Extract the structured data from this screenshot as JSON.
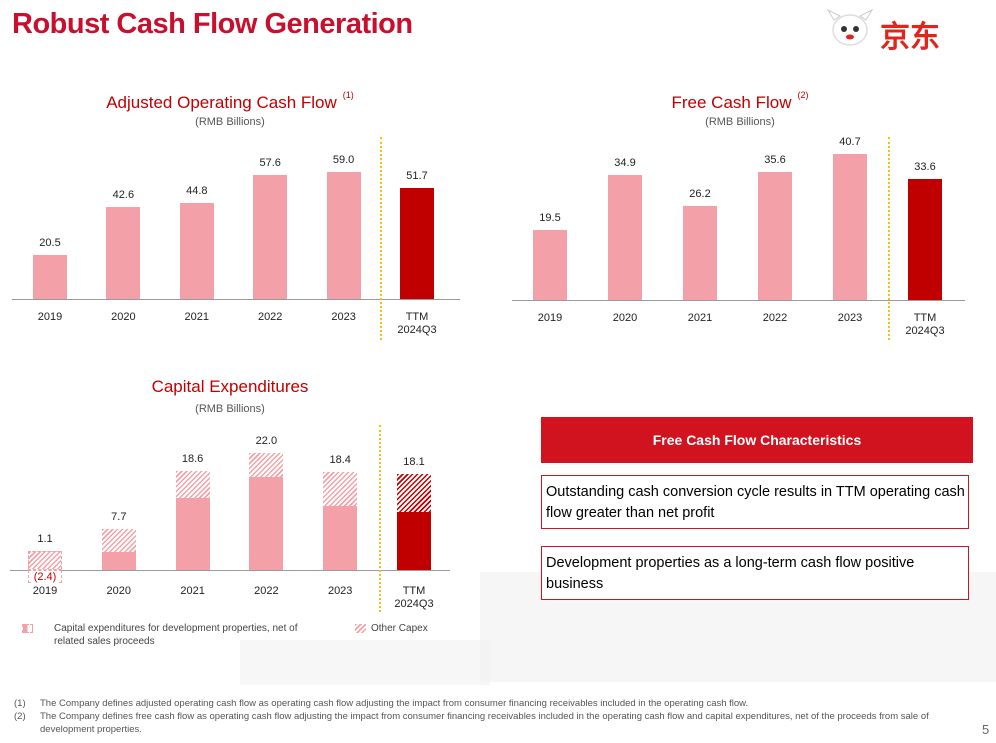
{
  "header": {
    "title": "Robust Cash Flow Generation",
    "logo_text": "京东"
  },
  "chart_data": [
    {
      "type": "bar",
      "title": "Adjusted Operating Cash Flow",
      "title_note": "(1)",
      "subtitle": "(RMB Billions)",
      "categories": [
        "2019",
        "2020",
        "2021",
        "2022",
        "2023",
        "TTM\n2024Q3"
      ],
      "values": [
        20.5,
        42.6,
        44.8,
        57.6,
        59.0,
        51.7
      ],
      "value_labels": [
        "20.5",
        "42.6",
        "44.8",
        "57.6",
        "59.0",
        "51.7"
      ],
      "colors": [
        "#f4a0a8",
        "#f4a0a8",
        "#f4a0a8",
        "#f4a0a8",
        "#f4a0a8",
        "#c00000"
      ]
    },
    {
      "type": "bar",
      "title": "Free Cash Flow",
      "title_note": "(2)",
      "subtitle": "(RMB Billions)",
      "categories": [
        "2019",
        "2020",
        "2021",
        "2022",
        "2023",
        "TTM\n2024Q3"
      ],
      "values": [
        19.5,
        34.9,
        26.2,
        35.6,
        40.7,
        33.6
      ],
      "value_labels": [
        "19.5",
        "34.9",
        "26.2",
        "35.6",
        "40.7",
        "33.6"
      ],
      "colors": [
        "#f4a0a8",
        "#f4a0a8",
        "#f4a0a8",
        "#f4a0a8",
        "#f4a0a8",
        "#c00000"
      ]
    },
    {
      "type": "stacked_bar",
      "title": "Capital Expenditures",
      "subtitle": "(RMB Billions)",
      "categories": [
        "2019",
        "2020",
        "2021",
        "2022",
        "2023",
        "TTM\n2024Q3"
      ],
      "series": [
        {
          "name": "Capital expenditures for development properties, net of related sales proceeds",
          "style": "solid",
          "values": [
            -2.4,
            3.4,
            13.6,
            17.5,
            12.1,
            10.9
          ],
          "value_labels": [
            "(2.4)",
            null,
            null,
            null,
            null,
            null
          ],
          "colors": [
            "#f4a0a8",
            "#f4a0a8",
            "#f4a0a8",
            "#f4a0a8",
            "#f4a0a8",
            "#c00000"
          ]
        },
        {
          "name": "Other Capex",
          "style": "hatched",
          "values": [
            3.5,
            4.3,
            5.0,
            4.5,
            6.3,
            7.2
          ],
          "colors": [
            "#f4a0a8",
            "#f4a0a8",
            "#f4a0a8",
            "#f4a0a8",
            "#f4a0a8",
            "#c00000"
          ]
        }
      ],
      "totals": [
        1.1,
        7.7,
        18.6,
        22.0,
        18.4,
        18.1
      ],
      "total_labels": [
        "1.1",
        "7.7",
        "18.6",
        "22.0",
        "18.4",
        "18.1"
      ]
    }
  ],
  "characteristics": {
    "title": "Free Cash Flow Characteristics",
    "items": [
      "Outstanding cash conversion cycle results in TTM operating cash flow greater than net profit",
      "Development properties as a long-term cash flow positive business"
    ]
  },
  "footnotes": [
    {
      "marker": "(1)",
      "text": "The Company defines adjusted operating cash flow as operating cash flow adjusting the impact from consumer financing receivables included in the operating cash flow."
    },
    {
      "marker": "(2)",
      "text": "The Company defines free cash flow as operating cash flow adjusting the impact from consumer financing receivables included in the operating cash flow and capital expenditures, net of the proceeds from sale of development properties."
    }
  ],
  "page_number": "5"
}
